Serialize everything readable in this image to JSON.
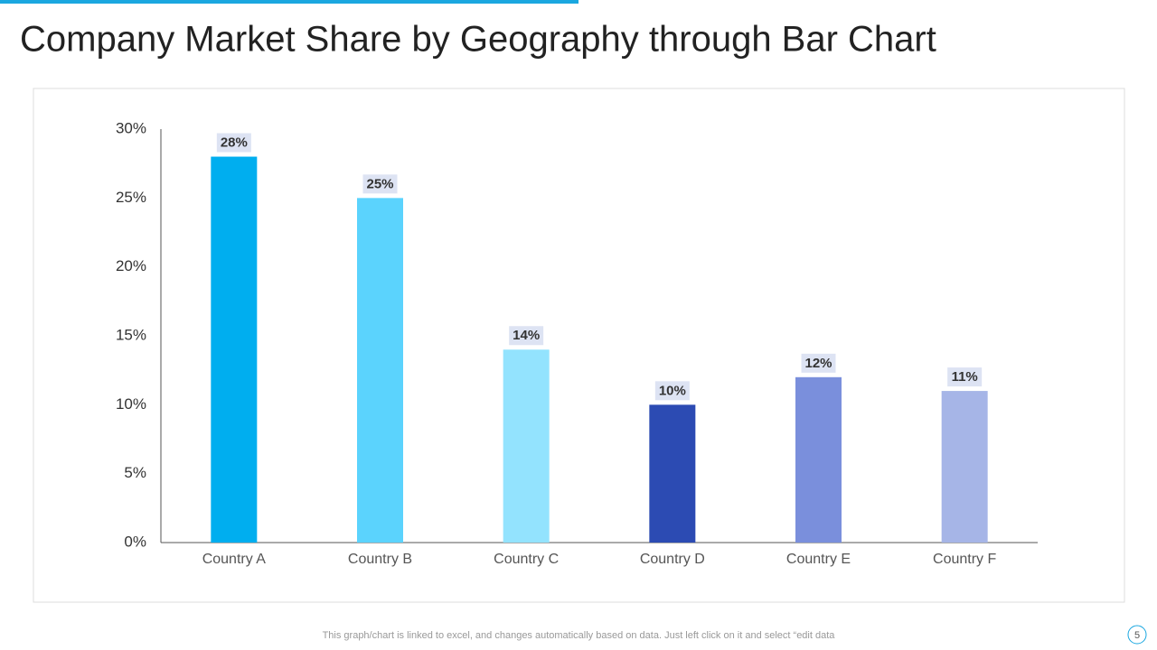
{
  "chart_data": {
    "type": "bar",
    "title": "Company Market Share by Geography through Bar Chart",
    "categories": [
      "Country A",
      "Country B",
      "Country C",
      "Country D",
      "Country E",
      "Country F"
    ],
    "values": [
      28,
      25,
      14,
      10,
      12,
      11
    ],
    "value_labels": [
      "28%",
      "25%",
      "14%",
      "10%",
      "12%",
      "11%"
    ],
    "colors": [
      "#00aeef",
      "#5bd3fd",
      "#93e3fe",
      "#2c4bb3",
      "#7a8fdc",
      "#a6b5e7"
    ],
    "ylim": [
      0,
      30
    ],
    "yticks": [
      {
        "value": 0,
        "label": "0%"
      },
      {
        "value": 5,
        "label": "5%"
      },
      {
        "value": 10,
        "label": "10%"
      },
      {
        "value": 15,
        "label": "15%"
      },
      {
        "value": 20,
        "label": "20%"
      },
      {
        "value": 25,
        "label": "25%"
      },
      {
        "value": 30,
        "label": "30%"
      }
    ],
    "grid": false
  },
  "footnote": "This graph/chart is linked to excel, and changes automatically based on data. Just left click on it and select “edit data",
  "page_number": "5"
}
